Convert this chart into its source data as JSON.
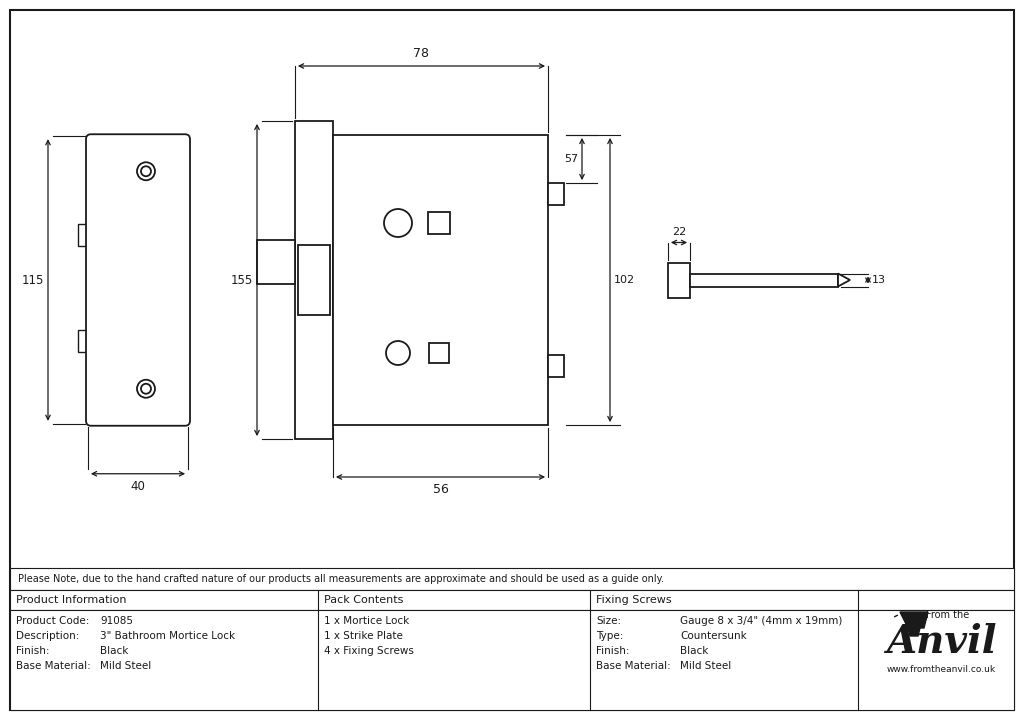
{
  "line_color": "#1a1a1a",
  "note_text": "Please Note, due to the hand crafted nature of our products all measurements are approximate and should be used as a guide only.",
  "product_info": {
    "header": "Product Information",
    "rows": [
      [
        "Product Code:",
        "91085"
      ],
      [
        "Description:",
        "3\" Bathroom Mortice Lock"
      ],
      [
        "Finish:",
        "Black"
      ],
      [
        "Base Material:",
        "Mild Steel"
      ]
    ]
  },
  "pack_contents": {
    "header": "Pack Contents",
    "items": [
      "1 x Mortice Lock",
      "1 x Strike Plate",
      "4 x Fixing Screws"
    ]
  },
  "fixing_screws": {
    "header": "Fixing Screws",
    "rows": [
      [
        "Size:",
        "Gauge 8 x 3/4\" (4mm x 19mm)"
      ],
      [
        "Type:",
        "Countersunk"
      ],
      [
        "Finish:",
        "Black"
      ],
      [
        "Base Material:",
        "Mild Steel"
      ]
    ]
  },
  "dim_78": "78",
  "dim_155": "155",
  "dim_56": "56",
  "dim_115": "115",
  "dim_40": "40",
  "dim_57": "57",
  "dim_102": "102",
  "dim_22": "22",
  "dim_13": "13"
}
